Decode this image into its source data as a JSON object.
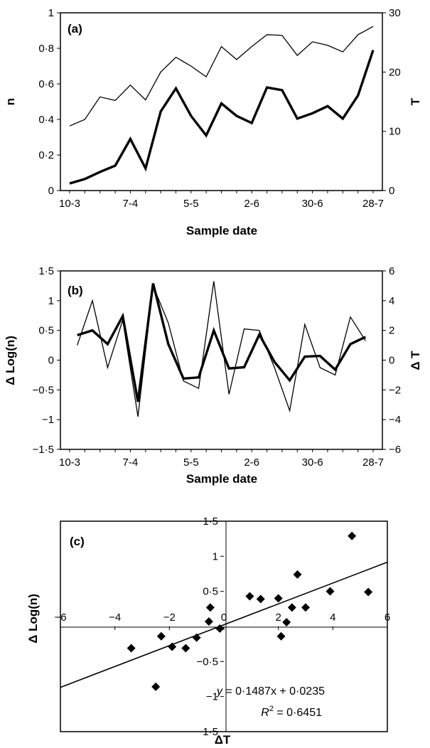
{
  "chart_data": [
    {
      "panel_label": "(a)",
      "type": "line",
      "xlabel": "Sample date",
      "ylabel": "n",
      "y2label": "T",
      "ylim": [
        0,
        1
      ],
      "y2lim": [
        0,
        30
      ],
      "yticks": [
        "0",
        "0·2",
        "0·4",
        "0·6",
        "0·8",
        "1"
      ],
      "y2ticks": [
        "0",
        "10",
        "20",
        "30"
      ],
      "xticks": [
        "10-3",
        "7-4",
        "5-5",
        "2-6",
        "30-6",
        "28-7"
      ],
      "n_points": 21,
      "grid": false,
      "series": [
        {
          "axis": "left",
          "style": "thick",
          "values": [
            0.04,
            0.065,
            0.105,
            0.14,
            0.29,
            0.125,
            0.445,
            0.575,
            0.42,
            0.31,
            0.49,
            0.42,
            0.38,
            0.58,
            0.565,
            0.405,
            0.435,
            0.475,
            0.405,
            0.535,
            0.79
          ]
        },
        {
          "axis": "right",
          "style": "thin",
          "values": [
            10.9,
            12.0,
            15.8,
            15.2,
            17.8,
            15.3,
            20.0,
            22.5,
            21.0,
            19.2,
            24.3,
            22.1,
            24.3,
            26.3,
            26.2,
            22.8,
            25.1,
            24.5,
            23.4,
            26.3,
            27.7
          ]
        }
      ]
    },
    {
      "panel_label": "(b)",
      "type": "line",
      "xlabel": "Sample date",
      "ylabel": "Δ Log(n)",
      "y2label": "Δ T",
      "ylim": [
        -1.5,
        1.5
      ],
      "y2lim": [
        -6,
        6
      ],
      "yticks": [
        "−1·5",
        "−1",
        "−0·5",
        "0",
        "0·5",
        "1",
        "1·5"
      ],
      "y2ticks": [
        "−6",
        "−4",
        "−2",
        "0",
        "2",
        "4",
        "6"
      ],
      "xticks": [
        "10-3",
        "7-4",
        "5-5",
        "2-6",
        "30-6",
        "28-7"
      ],
      "n_points": 21,
      "grid": false,
      "series": [
        {
          "axis": "left",
          "style": "thick",
          "values": [
            0.42,
            0.5,
            0.27,
            0.74,
            -0.7,
            1.29,
            0.27,
            -0.31,
            -0.29,
            0.5,
            -0.14,
            -0.12,
            0.43,
            -0.03,
            -0.34,
            0.06,
            0.07,
            -0.16,
            0.27,
            0.39
          ]
        },
        {
          "axis": "right",
          "style": "thin",
          "values": [
            1.0,
            4.0,
            -0.5,
            2.7,
            -3.8,
            5.0,
            2.5,
            -1.4,
            -1.9,
            5.3,
            -2.3,
            2.1,
            2.0,
            -0.5,
            -3.4,
            2.4,
            -0.5,
            -1.0,
            2.9,
            1.3
          ]
        }
      ]
    },
    {
      "panel_label": "(c)",
      "type": "scatter",
      "xlabel": "ΔT",
      "ylabel": "Δ Log(n)",
      "xlim": [
        -6,
        6
      ],
      "ylim": [
        -1.5,
        1.5
      ],
      "xticks": [
        "−6",
        "−4",
        "−2",
        "0",
        "2",
        "4",
        "6"
      ],
      "yticks": [
        "1·5",
        "1",
        "0·5",
        "−0·5",
        "−1",
        "−1·5"
      ],
      "grid": false,
      "points": [
        {
          "x": -3.4,
          "y": -0.31
        },
        {
          "x": -2.5,
          "y": -0.86
        },
        {
          "x": -2.3,
          "y": -0.14
        },
        {
          "x": -1.9,
          "y": -0.29
        },
        {
          "x": -1.4,
          "y": -0.31
        },
        {
          "x": -1.0,
          "y": -0.16
        },
        {
          "x": -0.55,
          "y": 0.07
        },
        {
          "x": -0.5,
          "y": 0.27
        },
        {
          "x": -0.15,
          "y": -0.03
        },
        {
          "x": 0.95,
          "y": 0.43
        },
        {
          "x": 1.35,
          "y": 0.39
        },
        {
          "x": 2.0,
          "y": 0.4
        },
        {
          "x": 2.1,
          "y": -0.14
        },
        {
          "x": 2.3,
          "y": 0.06
        },
        {
          "x": 2.5,
          "y": 0.27
        },
        {
          "x": 2.7,
          "y": 0.74
        },
        {
          "x": 3.0,
          "y": 0.27
        },
        {
          "x": 3.9,
          "y": 0.5
        },
        {
          "x": 4.7,
          "y": 1.29
        },
        {
          "x": 5.3,
          "y": 0.49
        }
      ],
      "trendline": {
        "slope": 0.1487,
        "intercept": 0.0235
      },
      "equation": {
        "lhs": "y",
        "rhs": " = 0·1487x + 0·0235"
      },
      "r_squared": {
        "label": "R",
        "sup": "2",
        "value": " = 0·6451"
      }
    }
  ]
}
